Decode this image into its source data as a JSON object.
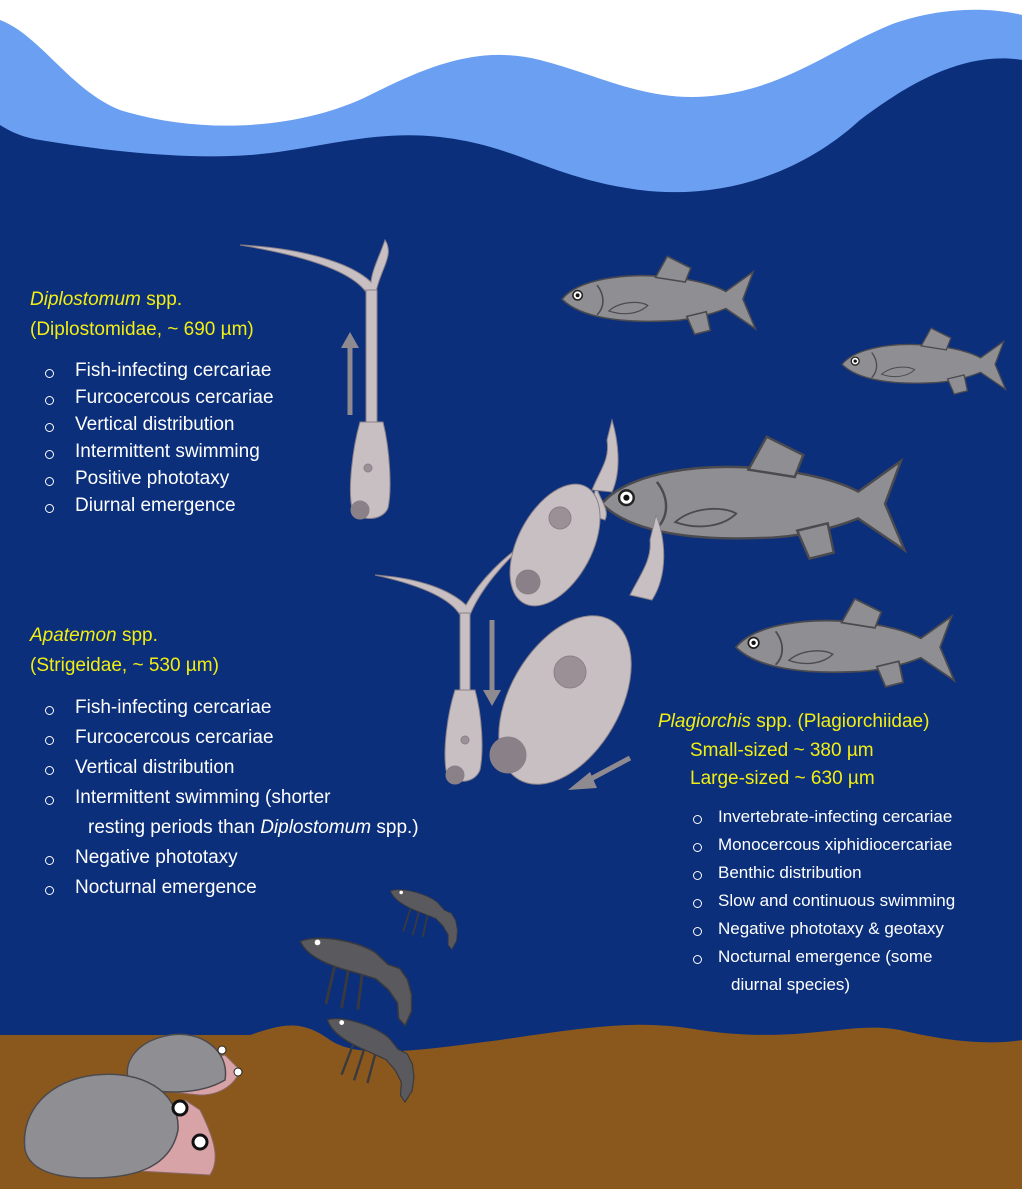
{
  "diplostomum": {
    "genus": "Diplostomum",
    "suffix": "spp.",
    "family": "(Diplostomidae, ~ 690 µm)",
    "traits": [
      "Fish-infecting cercariae",
      "Furcocercous cercariae",
      "Vertical distribution",
      "Intermittent swimming",
      "Positive phototaxy",
      "Diurnal emergence"
    ]
  },
  "apatemon": {
    "genus": "Apatemon",
    "suffix": "spp.",
    "family": "(Strigeidae, ~ 530 µm)",
    "traits": [
      "Fish-infecting cercariae",
      "Furcocercous cercariae",
      "Vertical distribution",
      {
        "text": "Intermittent swimming (shorter",
        "continuation": "resting periods than",
        "continuation_italic": "Diplostomum",
        "continuation_end": "spp.)"
      },
      "Negative phototaxy",
      "Nocturnal emergence"
    ]
  },
  "plagiorchis": {
    "genus": "Plagiorchis",
    "suffix": "spp. (Plagiorchiidae)",
    "sizes": [
      "Small-sized ~ 380 µm",
      "Large-sized ~ 630 µm"
    ],
    "traits": [
      "Invertebrate-infecting cercariae",
      "Monocercous xiphidiocercariae",
      "Benthic distribution",
      "Slow and continuous swimming",
      "Negative phototaxy & geotaxy",
      {
        "text": "Nocturnal emergence (some",
        "continuation": "diurnal species)"
      }
    ]
  }
}
